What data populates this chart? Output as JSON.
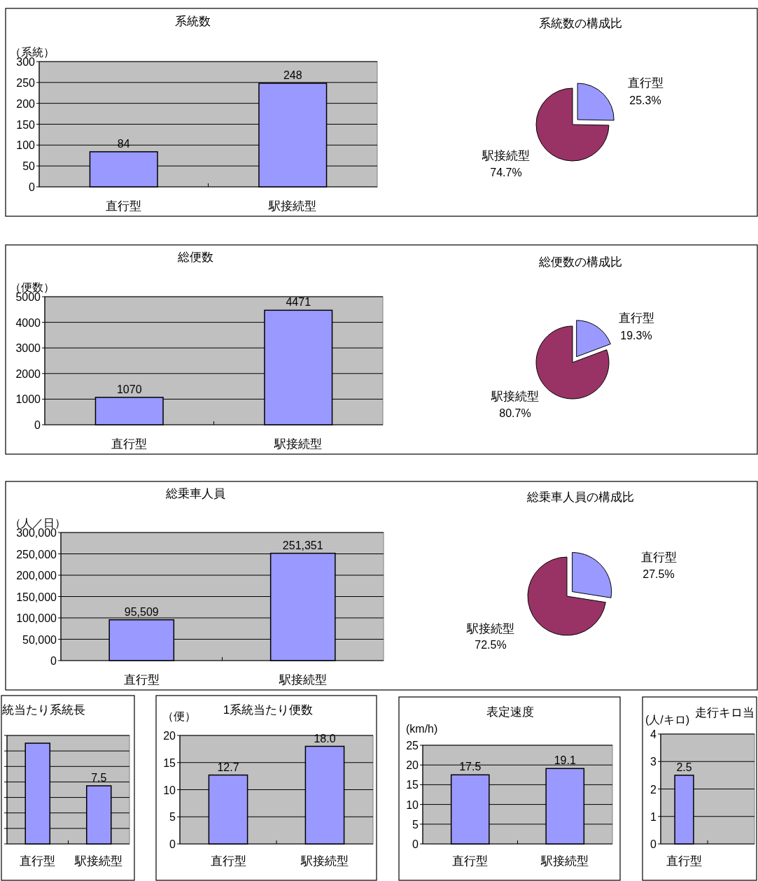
{
  "chart_data": [
    {
      "type": "bar",
      "title": "系統数",
      "ylabel": "（系統）",
      "categories": [
        "直行型",
        "駅接続型"
      ],
      "values": [
        84,
        248
      ],
      "value_labels": [
        "84",
        "248"
      ],
      "color": "#9999ff",
      "ylim": [
        0,
        300
      ],
      "yticks": [
        0,
        50,
        100,
        150,
        200,
        250,
        300
      ],
      "grid": "y"
    },
    {
      "type": "pie",
      "title": "系統数の構成比",
      "categories": [
        "直行型",
        "駅接続型"
      ],
      "values": [
        25.3,
        74.7
      ],
      "value_labels": [
        "25.3%",
        "74.7%"
      ],
      "colors": [
        "#9999ff",
        "#993366"
      ]
    },
    {
      "type": "bar",
      "title": "総便数",
      "ylabel": "（便数）",
      "categories": [
        "直行型",
        "駅接続型"
      ],
      "values": [
        1070,
        4471
      ],
      "value_labels": [
        "1070",
        "4471"
      ],
      "color": "#9999ff",
      "ylim": [
        0,
        5000
      ],
      "yticks": [
        0,
        1000,
        2000,
        3000,
        4000,
        5000
      ],
      "grid": "y"
    },
    {
      "type": "pie",
      "title": "総便数の構成比",
      "categories": [
        "直行型",
        "駅接続型"
      ],
      "values": [
        19.3,
        80.7
      ],
      "value_labels": [
        "19.3%",
        "80.7%"
      ],
      "colors": [
        "#9999ff",
        "#993366"
      ]
    },
    {
      "type": "bar",
      "title": "総乗車人員",
      "ylabel": "（人／日）",
      "categories": [
        "直行型",
        "駅接続型"
      ],
      "values": [
        95509,
        251351
      ],
      "value_labels": [
        "95,509",
        "251,351"
      ],
      "color": "#9999ff",
      "ylim": [
        0,
        300000
      ],
      "yticks": [
        0,
        {
          "value": 50000,
          "label": "50,000"
        },
        {
          "value": 100000,
          "label": "100,000"
        },
        {
          "value": 150000,
          "label": "150,000"
        },
        {
          "value": 200000,
          "label": "200,000"
        },
        {
          "value": 250000,
          "label": "250,000"
        },
        {
          "value": 300000,
          "label": "300,000"
        }
      ],
      "grid": "y"
    },
    {
      "type": "pie",
      "title": "総乗車人員の構成比",
      "categories": [
        "直行型",
        "駅接続型"
      ],
      "values": [
        27.5,
        72.5
      ],
      "value_labels": [
        "27.5%",
        "72.5%"
      ],
      "colors": [
        "#9999ff",
        "#993366"
      ]
    },
    {
      "type": "bar",
      "title": "統当たり系統長",
      "categories": [
        "直行型",
        "駅接続型"
      ],
      "values": [
        13.0,
        7.5
      ],
      "value_labels": [
        null,
        "7.5"
      ],
      "color": "#9999ff",
      "ylim": [
        0,
        14
      ],
      "yticks": [
        {
          "value": 0,
          "label": null
        },
        {
          "value": 2,
          "label": null
        },
        {
          "value": 4,
          "label": null
        },
        {
          "value": 6,
          "label": null
        },
        {
          "value": 8,
          "label": null
        },
        {
          "value": 10,
          "label": null
        },
        {
          "value": 12,
          "label": null
        },
        {
          "value": 14,
          "label": null
        }
      ],
      "grid": "y",
      "tick_labels": "x"
    },
    {
      "type": "bar",
      "title": "1系統当たり便数",
      "ylabel": "（便）",
      "categories": [
        "直行型",
        "駅接続型"
      ],
      "values": [
        12.7,
        18.0
      ],
      "value_labels": [
        "12.7",
        "18.0"
      ],
      "color": "#9999ff",
      "ylim": [
        0,
        20
      ],
      "yticks": [
        0,
        5,
        10,
        15,
        20
      ],
      "grid": "y"
    },
    {
      "type": "bar",
      "title": "表定速度",
      "ylabel": "(km/h)",
      "categories": [
        "直行型",
        "駅接続型"
      ],
      "values": [
        17.5,
        19.1
      ],
      "value_labels": [
        "17.5",
        "19.1"
      ],
      "color": "#9999ff",
      "ylim": [
        0,
        25
      ],
      "yticks": [
        0,
        5,
        10,
        15,
        20,
        25
      ],
      "grid": "y"
    },
    {
      "type": "bar",
      "title": "走行キロ当",
      "ylabel": "(人/キロ)",
      "categories": [
        "直行型",
        null
      ],
      "values": [
        2.5,
        null
      ],
      "value_labels": [
        "2.5",
        null
      ],
      "color": "#9999ff",
      "ylim": [
        0,
        4
      ],
      "yticks": [
        0,
        1,
        2,
        3,
        4
      ],
      "grid": "y"
    }
  ]
}
